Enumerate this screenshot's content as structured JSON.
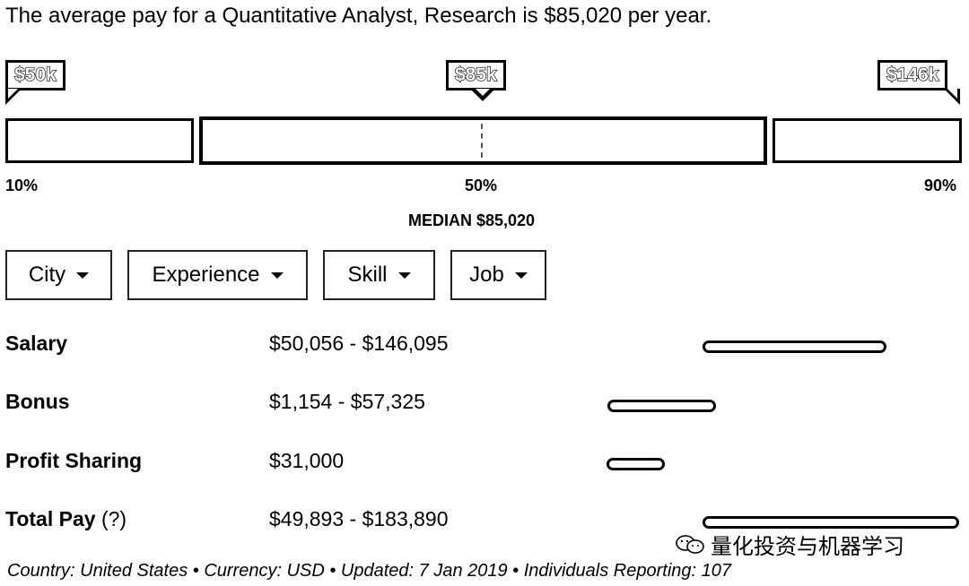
{
  "headline": "The average pay for a Quantitative Analyst, Research is $85,020 per year.",
  "markers": {
    "low": "$50k",
    "median": "$85k",
    "high": "$146k"
  },
  "percentiles": {
    "p10": "10%",
    "p50": "50%",
    "p90": "90%"
  },
  "median_label": "MEDIAN $85,020",
  "filters": [
    {
      "label": "City"
    },
    {
      "label": "Experience"
    },
    {
      "label": "Skill"
    },
    {
      "label": "Job"
    }
  ],
  "rows": [
    {
      "label": "Salary",
      "value": "$50,056 - $146,095"
    },
    {
      "label": "Bonus",
      "value": "$1,154 - $57,325"
    },
    {
      "label": "Profit Sharing",
      "value": "$31,000"
    },
    {
      "label": "Total Pay",
      "help": "(?)",
      "value": "$49,893 - $183,890"
    }
  ],
  "footer": "Country: United States • Currency: USD • Updated: 7 Jan 2019 • Individuals Reporting: 107",
  "watermark": "量化投资与机器学习"
}
